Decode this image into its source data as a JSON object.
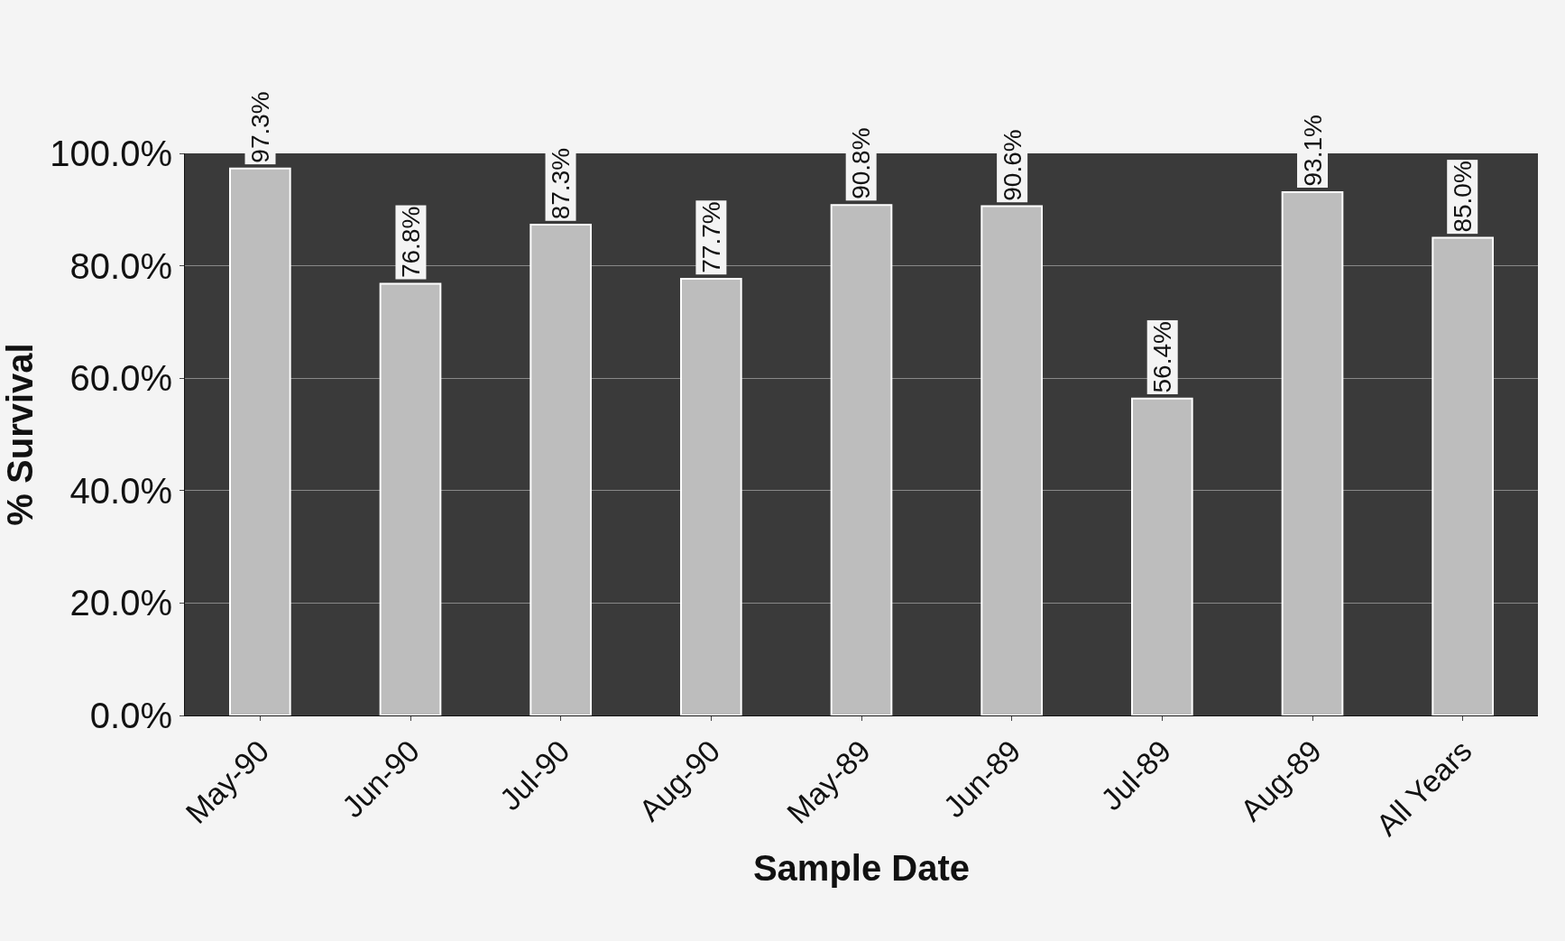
{
  "chart_data": {
    "type": "bar",
    "xlabel": "Sample Date",
    "ylabel": "% Survival",
    "categories": [
      "May-90",
      "Jun-90",
      "Jul-90",
      "Aug-90",
      "May-89",
      "Jun-89",
      "Jul-89",
      "Aug-89",
      "All Years"
    ],
    "values": [
      97.3,
      76.8,
      87.3,
      77.7,
      90.8,
      90.6,
      56.4,
      93.1,
      85.0
    ],
    "value_labels": [
      "97.3%",
      "76.8%",
      "87.3%",
      "77.7%",
      "90.8%",
      "90.6%",
      "56.4%",
      "93.1%",
      "85.0%"
    ],
    "color": "#bdbdbd",
    "ylim": [
      0,
      100
    ],
    "yticks": [
      {
        "value": 0,
        "label": "0.0%"
      },
      {
        "value": 20,
        "label": "20.0%"
      },
      {
        "value": 40,
        "label": "40.0%"
      },
      {
        "value": 60,
        "label": "60.0%"
      },
      {
        "value": 80,
        "label": "80.0%"
      },
      {
        "value": 100,
        "label": "100.0%"
      }
    ],
    "grid": "y"
  }
}
